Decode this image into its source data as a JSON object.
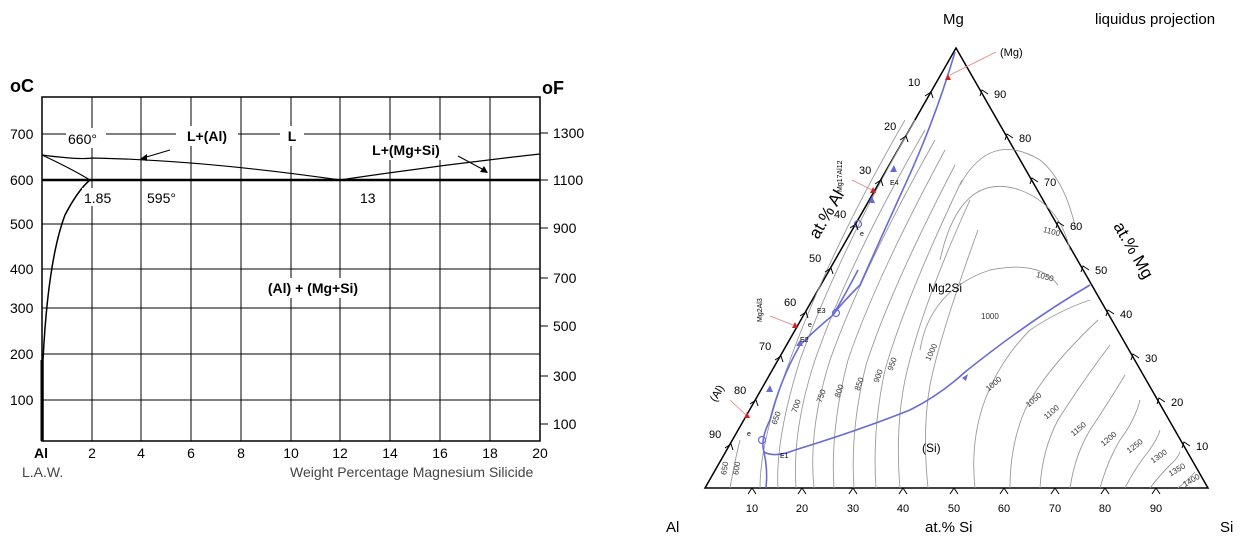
{
  "binary": {
    "unit_left": "oC",
    "unit_right": "oF",
    "left_ticks": [
      "100",
      "200",
      "300",
      "400",
      "500",
      "600",
      "700"
    ],
    "right_ticks": [
      "100",
      "300",
      "500",
      "700",
      "900",
      "1100",
      "1300"
    ],
    "x_ticks": [
      "2",
      "4",
      "6",
      "8",
      "10",
      "12",
      "14",
      "16",
      "18",
      "20"
    ],
    "x_origin": "Al",
    "credit": "L.A.W.",
    "xlabel": "Weight Percentage Magnesium Silicide",
    "region_L": "L",
    "region_L_Al": "L+(Al)",
    "region_L_MgSi": "L+(Mg+Si)",
    "region_solid": "(Al) + (Mg+Si)",
    "point_660": "660°",
    "point_595": "595°",
    "point_185": "1.85",
    "point_13": "13"
  },
  "ternary": {
    "title": "liquidus projection",
    "vertex_mg": "Mg",
    "vertex_al": "Al",
    "vertex_si": "Si",
    "axis_al": "at.% Al",
    "axis_mg": "at.% Mg",
    "axis_si": "at.% Si",
    "left_ticks": [
      "10",
      "20",
      "30",
      "40",
      "50",
      "60",
      "70",
      "80",
      "90"
    ],
    "right_ticks": [
      "90",
      "80",
      "70",
      "60",
      "50",
      "40",
      "30",
      "20",
      "10"
    ],
    "bottom_ticks": [
      "10",
      "20",
      "30",
      "40",
      "50",
      "60",
      "70",
      "80",
      "90"
    ],
    "label_mg_phase": "(Mg)",
    "label_al_phase": "(Al)",
    "label_si_phase": "(Si)",
    "label_mg2si": "Mg2Si",
    "label_mg17al12": "Mg17Al12",
    "label_mg2al3": "Mg2Al3",
    "label_e1": "E1",
    "label_e2": "E2",
    "label_e3": "E3",
    "label_e4": "E4",
    "label_e": "e",
    "isotherms": [
      "650",
      "600",
      "650",
      "700",
      "750",
      "800",
      "850",
      "900",
      "950",
      "1000",
      "1050",
      "1100",
      "1000",
      "1050",
      "1100",
      "1150",
      "1200",
      "1250",
      "1300",
      "1350",
      "1400"
    ],
    "colors": {
      "boundary": "#6b6bd6",
      "isotherm": "#9a9a9a",
      "marker": "#d02020"
    }
  }
}
